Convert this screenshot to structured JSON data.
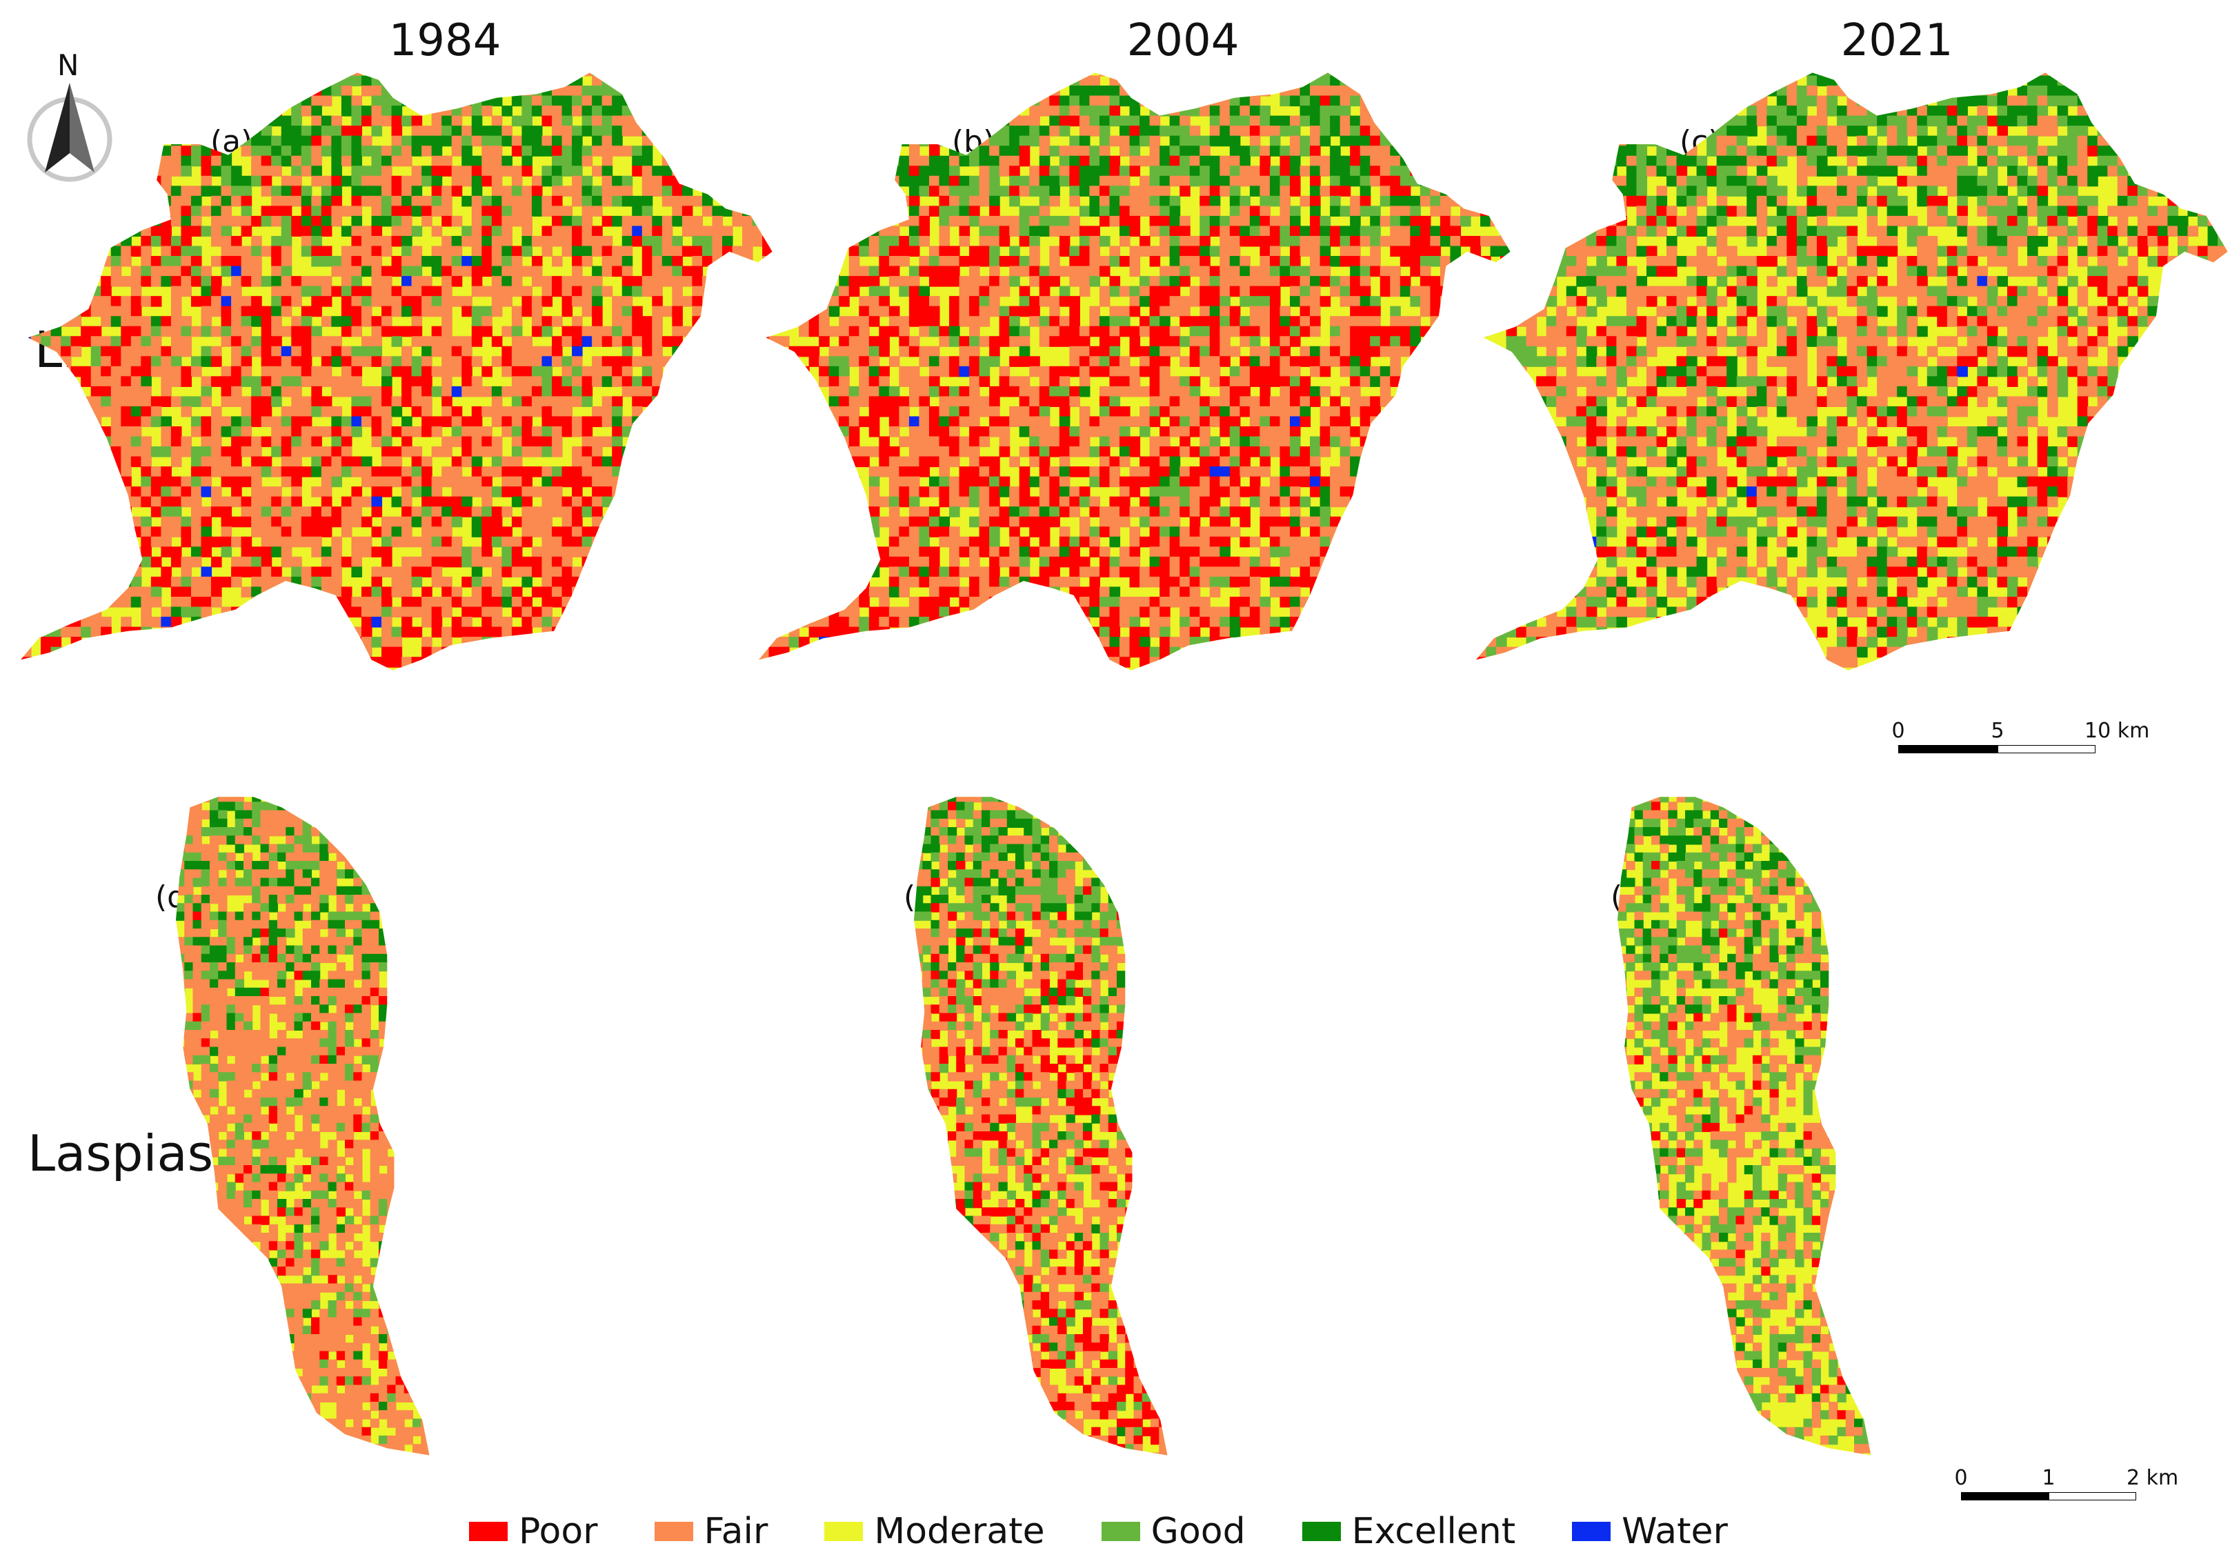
{
  "years": [
    "1984",
    "2004",
    "2021"
  ],
  "rows": [
    "Lissos",
    "Laspias"
  ],
  "north_arrow": {
    "label": "N",
    "icon": "north-arrow-icon"
  },
  "panels": [
    {
      "label": "(a)",
      "region": "Lissos",
      "year": "1984",
      "mix": [
        26,
        40,
        22,
        8,
        3,
        1
      ]
    },
    {
      "label": "(b)",
      "region": "Lissos",
      "year": "2004",
      "mix": [
        30,
        35,
        21,
        9,
        4,
        1
      ]
    },
    {
      "label": "(c)",
      "region": "Lissos",
      "year": "2021",
      "mix": [
        12,
        36,
        28,
        15,
        7,
        2
      ]
    },
    {
      "label": "(d)",
      "region": "Laspias",
      "year": "1984",
      "mix": [
        6,
        60,
        22,
        9,
        3,
        0
      ]
    },
    {
      "label": "(e)",
      "region": "Laspias",
      "year": "2004",
      "mix": [
        22,
        38,
        25,
        11,
        4,
        0
      ]
    },
    {
      "label": "(f)",
      "region": "Laspias",
      "year": "2021",
      "mix": [
        3,
        30,
        42,
        21,
        4,
        0
      ]
    }
  ],
  "scalebars": [
    {
      "ticks": [
        "0",
        "5",
        "10 km"
      ]
    },
    {
      "ticks": [
        "0",
        "1",
        "2 km"
      ]
    }
  ],
  "legend": [
    {
      "label": "Poor",
      "color": "#ff0000"
    },
    {
      "label": "Fair",
      "color": "#fa8a4f"
    },
    {
      "label": "Moderate",
      "color": "#ebf52a"
    },
    {
      "label": "Good",
      "color": "#66b63e"
    },
    {
      "label": "Excellent",
      "color": "#0a8a0a"
    },
    {
      "label": "Water",
      "color": "#0a2bf0"
    }
  ]
}
